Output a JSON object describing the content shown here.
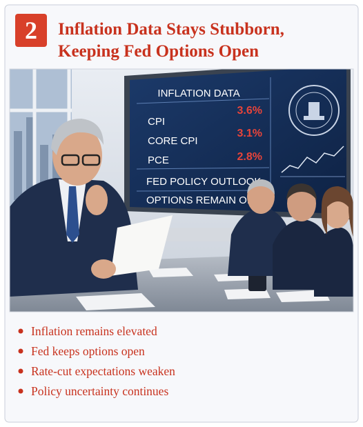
{
  "header": {
    "badge": "2",
    "title_lines": [
      "Inflation Data Stays Stubborn,",
      "Keeping Fed Options Open"
    ]
  },
  "screen": {
    "heading": "INFLATION DATA",
    "rows": [
      {
        "label": "CPI",
        "value": "3.6%"
      },
      {
        "label": "CORE CPI",
        "value": "3.1%"
      },
      {
        "label": "PCE",
        "value": "2.8%"
      }
    ],
    "notes": [
      "FED POLICY OUTLOOK",
      "OPTIONS REMAIN OPEN"
    ]
  },
  "bullets": [
    "Inflation remains elevated",
    "Fed keeps options open",
    "Rate-cut expectations weaken",
    "Policy uncertainty continues"
  ]
}
